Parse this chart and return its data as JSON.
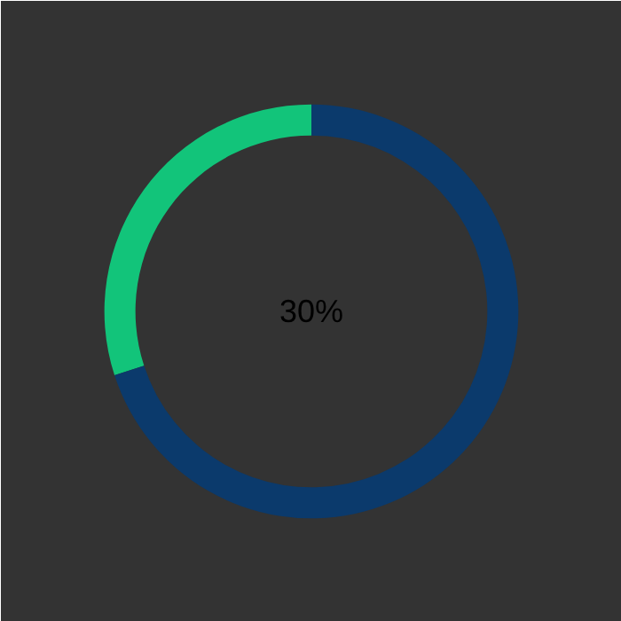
{
  "chart_data": {
    "type": "donut",
    "categories": [
      null,
      null
    ],
    "values": [
      30,
      70
    ],
    "colors": [
      "#12c47a",
      "#0b3a6c"
    ],
    "annotations": [
      "30%"
    ]
  }
}
